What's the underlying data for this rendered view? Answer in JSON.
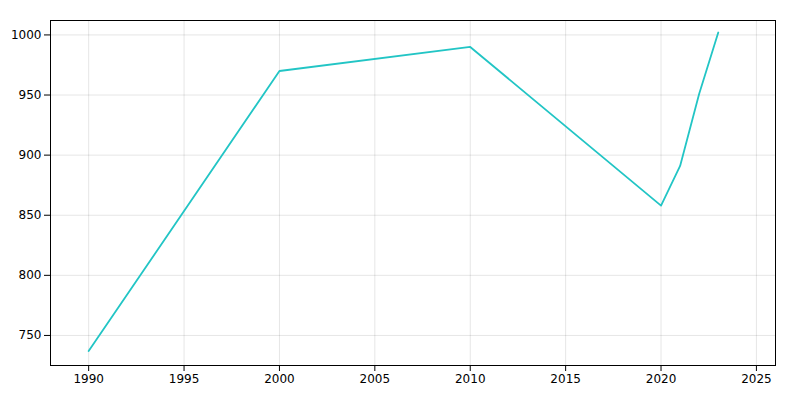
{
  "chart_data": {
    "type": "line",
    "x": [
      1990,
      2000,
      2010,
      2020,
      2021,
      2022,
      2023
    ],
    "values": [
      737,
      970,
      990,
      858,
      891,
      951,
      1002
    ],
    "color": "#22c5c5",
    "xlim": [
      1988,
      2026
    ],
    "ylim": [
      725,
      1012
    ],
    "xticks": [
      1990,
      1995,
      2000,
      2005,
      2010,
      2015,
      2020,
      2025
    ],
    "yticks": [
      750,
      800,
      850,
      900,
      950,
      1000
    ],
    "grid": true
  }
}
